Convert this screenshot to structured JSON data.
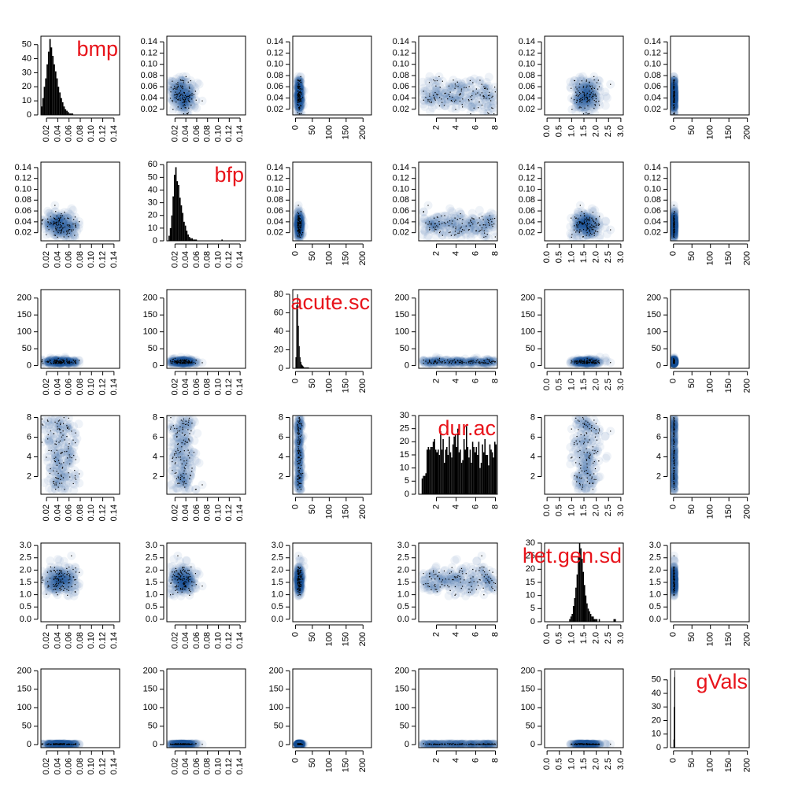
{
  "chart_data": {
    "type": "scatter-matrix",
    "layout": "6x6 pairs plot: histograms on the diagonal, smoothed density scatter plots off the diagonal",
    "variables": [
      {
        "name": "bmp",
        "range": [
          0.01,
          0.15
        ],
        "ticks": [
          "0.02",
          "0.04",
          "0.06",
          "0.08",
          "0.10",
          "0.12",
          "0.14"
        ],
        "tick_values": [
          0.02,
          0.04,
          0.06,
          0.08,
          0.1,
          0.12,
          0.14
        ],
        "hist_ticks": [
          "0",
          "10",
          "20",
          "30",
          "40",
          "50"
        ],
        "hist_tick_values": [
          0,
          10,
          20,
          30,
          40,
          50
        ],
        "hist_ylim": [
          0,
          56
        ]
      },
      {
        "name": "bfp",
        "range": [
          0.005,
          0.15
        ],
        "ticks": [
          "0.02",
          "0.04",
          "0.06",
          "0.08",
          "0.10",
          "0.12",
          "0.14"
        ],
        "tick_values": [
          0.02,
          0.04,
          0.06,
          0.08,
          0.1,
          0.12,
          0.14
        ],
        "hist_ticks": [
          "0",
          "10",
          "20",
          "30",
          "40",
          "50",
          "60"
        ],
        "hist_tick_values": [
          0,
          10,
          20,
          30,
          40,
          50,
          60
        ],
        "hist_ylim": [
          0,
          62
        ]
      },
      {
        "name": "acute.sc",
        "range": [
          -8,
          225
        ],
        "ticks": [
          "0",
          "50",
          "100",
          "150",
          "200"
        ],
        "tick_values": [
          0,
          50,
          100,
          150,
          200
        ],
        "hist_ticks": [
          "0",
          "20",
          "40",
          "60",
          "80"
        ],
        "hist_tick_values": [
          0,
          20,
          40,
          60,
          80
        ],
        "hist_ylim": [
          0,
          85
        ]
      },
      {
        "name": "dur.ac",
        "range": [
          0.2,
          8.2
        ],
        "ticks": [
          "2",
          "4",
          "6",
          "8"
        ],
        "tick_values": [
          2,
          4,
          6,
          8
        ],
        "hist_ticks": [
          "0",
          "5",
          "10",
          "15",
          "20",
          "25",
          "30"
        ],
        "hist_tick_values": [
          0,
          5,
          10,
          15,
          20,
          25,
          30
        ],
        "hist_ylim": [
          0,
          30
        ]
      },
      {
        "name": "het.gen.sd",
        "range": [
          -0.1,
          3.1
        ],
        "ticks": [
          "0.0",
          "0.5",
          "1.0",
          "1.5",
          "2.0",
          "2.5",
          "3.0"
        ],
        "tick_values": [
          0.0,
          0.5,
          1.0,
          1.5,
          2.0,
          2.5,
          3.0
        ],
        "hist_ticks": [
          "0",
          "5",
          "10",
          "15",
          "20",
          "25",
          "30"
        ],
        "hist_tick_values": [
          0,
          5,
          10,
          15,
          20,
          25,
          30
        ],
        "hist_ylim": [
          0,
          30
        ]
      },
      {
        "name": "gVals",
        "range": [
          -8,
          205
        ],
        "ticks": [
          "0",
          "50",
          "100",
          "150",
          "200"
        ],
        "tick_values": [
          0,
          50,
          100,
          150,
          200
        ],
        "hist_ticks": [
          "0",
          "10",
          "20",
          "30",
          "40",
          "50"
        ],
        "hist_tick_values": [
          0,
          10,
          20,
          30,
          40,
          50
        ],
        "hist_ylim": [
          0,
          58
        ]
      }
    ],
    "histograms": [
      {
        "variable": "bmp",
        "bin_start": 0.01,
        "bin_width": 0.0025,
        "counts": [
          6,
          12,
          20,
          26,
          36,
          45,
          54,
          48,
          42,
          36,
          31,
          26,
          20,
          16,
          12,
          9,
          6,
          4,
          3,
          2,
          1,
          1,
          1
        ]
      },
      {
        "variable": "bfp",
        "bin_start": 0.008,
        "bin_width": 0.0025,
        "counts": [
          4,
          10,
          20,
          35,
          52,
          58,
          47,
          44,
          34,
          28,
          22,
          15,
          12,
          8,
          5,
          3,
          2,
          2,
          1,
          1,
          1,
          0,
          0,
          0,
          0,
          0,
          0,
          0,
          0,
          0,
          0,
          0,
          0,
          0,
          0,
          0,
          0,
          0,
          0,
          1
        ]
      },
      {
        "variable": "acute.sc",
        "bin_start": 0,
        "bin_width": 2.5,
        "counts": [
          12,
          68,
          80,
          46,
          24,
          12,
          7,
          4,
          3,
          2,
          1,
          1,
          1,
          1,
          1,
          1
        ]
      },
      {
        "variable": "dur.ac",
        "bin_start": 0.5,
        "bin_width": 0.125,
        "counts": [
          6,
          7,
          7,
          8,
          17,
          18,
          17,
          18,
          18,
          20,
          21,
          17,
          16,
          17,
          15,
          24,
          17,
          21,
          12,
          17,
          18,
          15,
          22,
          16,
          14,
          19,
          22,
          23,
          18,
          25,
          16,
          17,
          12,
          13,
          21,
          17,
          26,
          18,
          14,
          17,
          12,
          20,
          18,
          16,
          18,
          15,
          20,
          10,
          12,
          19,
          16,
          21,
          15,
          15,
          11,
          19,
          17,
          16,
          14,
          20,
          19
        ]
      },
      {
        "variable": "het.gen.sd",
        "bin_start": 0.9,
        "bin_width": 0.05,
        "counts": [
          1,
          2,
          3,
          6,
          9,
          13,
          18,
          25,
          30,
          28,
          24,
          19,
          14,
          10,
          7,
          5,
          4,
          3,
          2,
          2,
          1,
          1,
          1,
          0,
          1,
          0,
          0,
          0,
          0,
          0,
          0,
          0,
          0,
          0,
          0,
          0,
          1,
          1
        ]
      },
      {
        "variable": "gVals",
        "bin_start": 0,
        "bin_width": 1,
        "counts": [
          6,
          30,
          52,
          57
        ]
      }
    ]
  }
}
